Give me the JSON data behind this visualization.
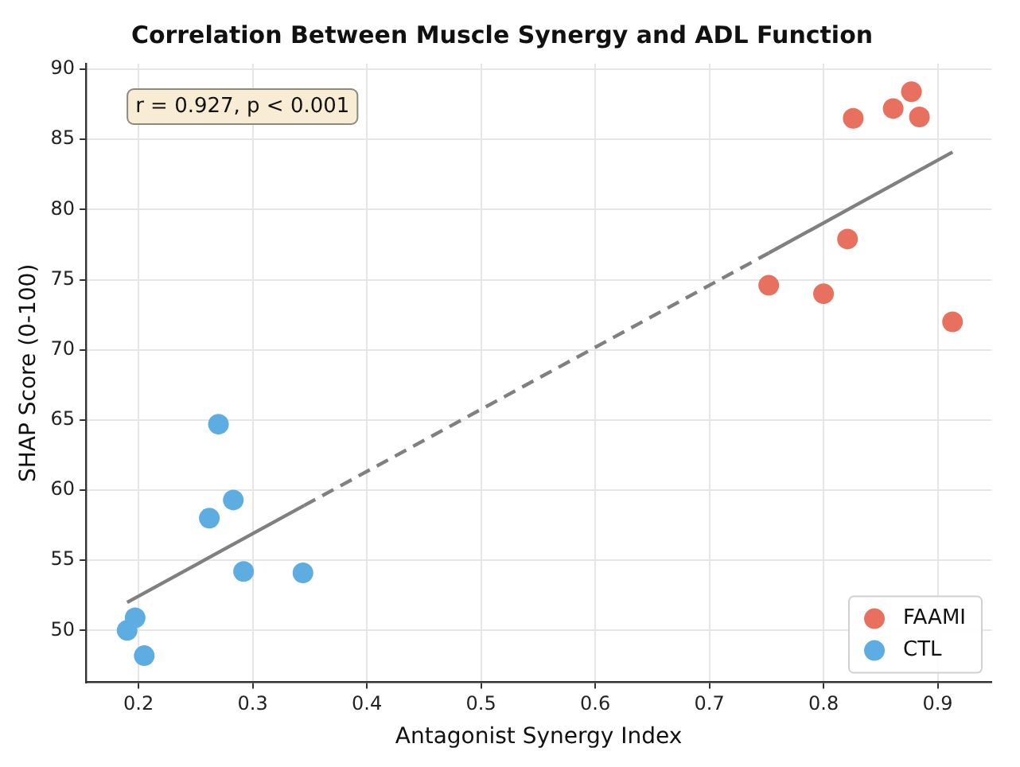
{
  "chart_data": {
    "type": "scatter",
    "title": "Correlation Between Muscle Synergy and ADL Function",
    "xlabel": "Antagonist Synergy Index",
    "ylabel": "SHAP Score (0-100)",
    "xlim": [
      0.154,
      0.947
    ],
    "ylim": [
      46.3,
      90.4
    ],
    "xticks": [
      0.2,
      0.3,
      0.4,
      0.5,
      0.6,
      0.7,
      0.8,
      0.9
    ],
    "yticks": [
      50,
      55,
      60,
      65,
      70,
      75,
      80,
      85,
      90
    ],
    "grid": true,
    "legend": "bottom right",
    "marker": "circle",
    "annotations": [
      "r = 0.927, p < 0.001"
    ],
    "series": [
      {
        "name": "FAAMI",
        "color": "#e8705f",
        "x": [
          0.752,
          0.8,
          0.821,
          0.826,
          0.861,
          0.877,
          0.884,
          0.913
        ],
        "values": [
          74.6,
          74.0,
          77.9,
          86.5,
          87.2,
          88.4,
          86.6,
          72.0
        ]
      },
      {
        "name": "CTL",
        "color": "#5dade2",
        "x": [
          0.19,
          0.197,
          0.205,
          0.262,
          0.27,
          0.283,
          0.292,
          0.344
        ],
        "values": [
          50.0,
          50.9,
          48.2,
          58.0,
          64.7,
          59.3,
          54.2,
          54.1
        ]
      },
      {
        "type": "line",
        "color": "#808080",
        "line_style": "solid",
        "marker": "none",
        "x": [
          0.19,
          0.345
        ],
        "values": [
          52.0,
          58.9
        ]
      },
      {
        "type": "line",
        "color": "#808080",
        "line_style": "dashed",
        "marker": "none",
        "x": [
          0.345,
          0.752
        ],
        "values": [
          58.9,
          76.9
        ]
      },
      {
        "type": "line",
        "color": "#808080",
        "line_style": "solid",
        "marker": "none",
        "x": [
          0.752,
          0.913
        ],
        "values": [
          76.9,
          84.1
        ]
      }
    ]
  }
}
